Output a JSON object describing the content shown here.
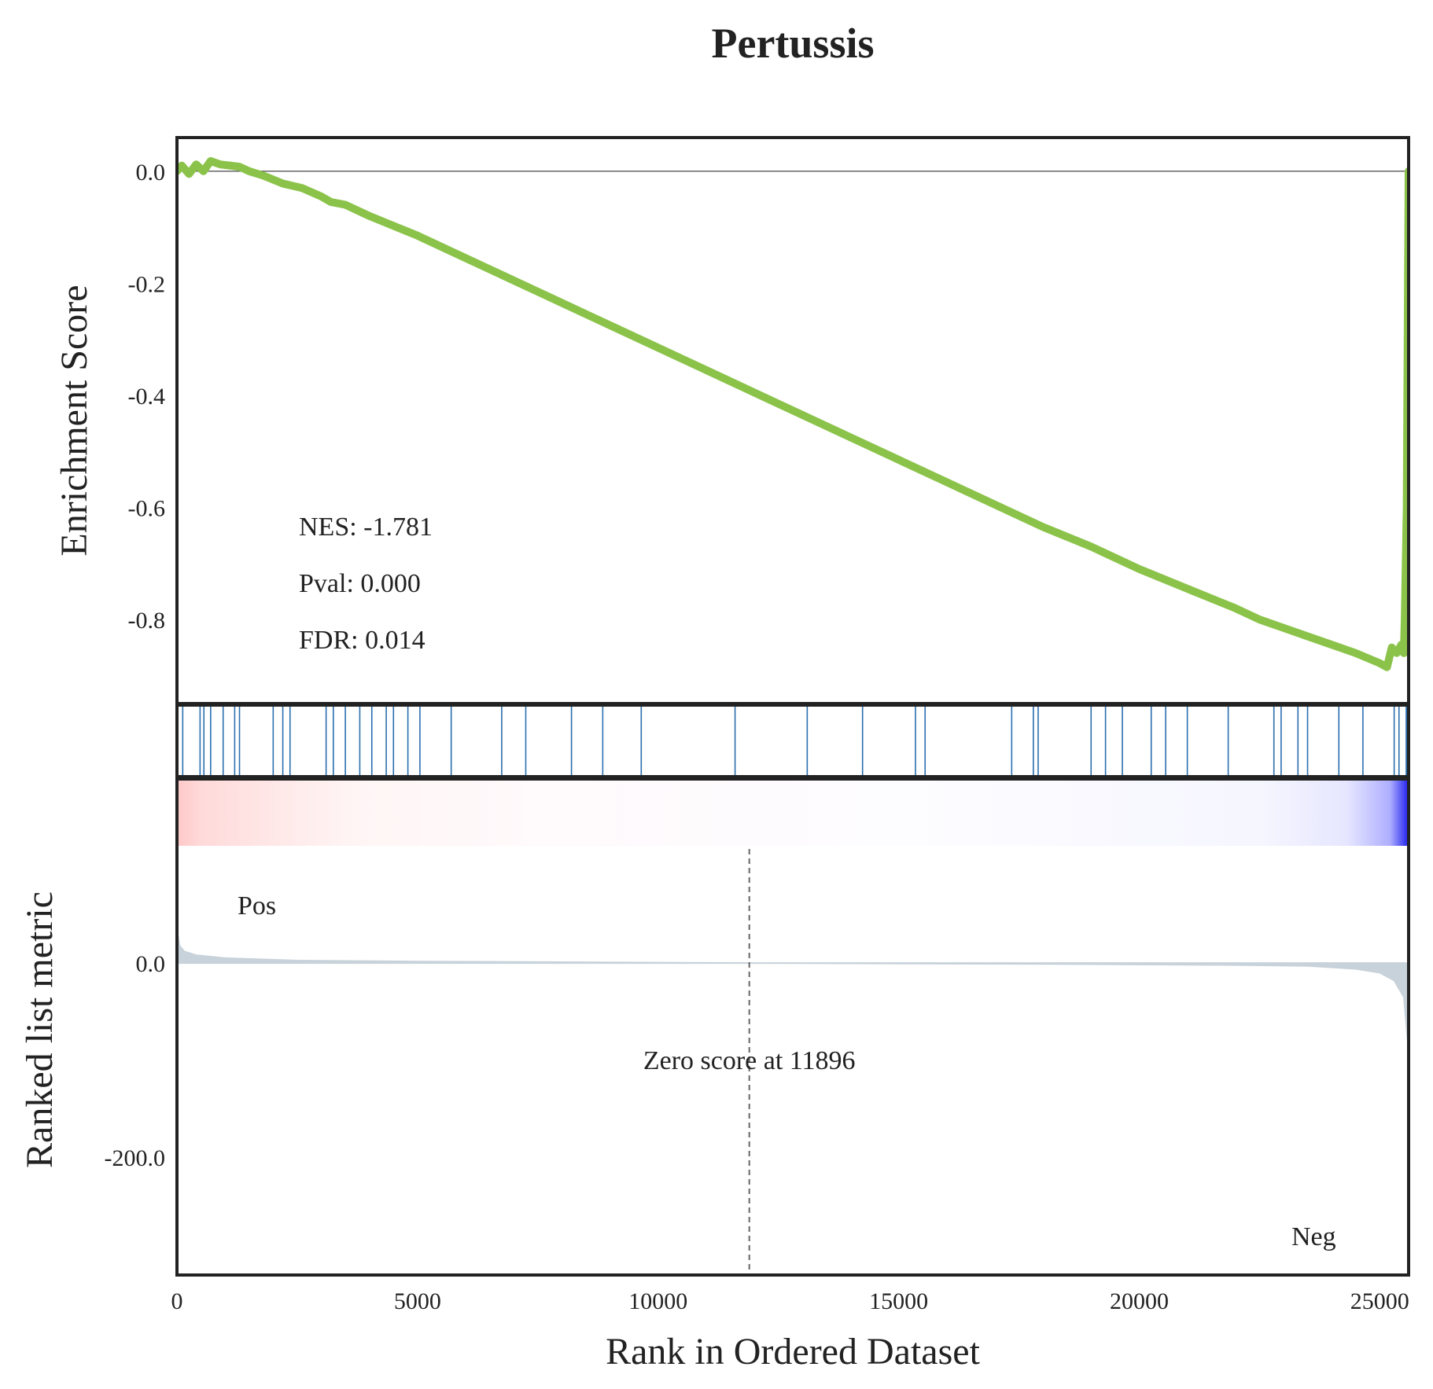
{
  "chart_data": {
    "type": "line",
    "title": "Pertussis",
    "xlabel": "Rank in Ordered Dataset",
    "xlim": [
      0,
      25600
    ],
    "x_ticks": [
      0,
      5000,
      10000,
      15000,
      20000,
      25000
    ],
    "enrichment": {
      "ylabel": "Enrichment Score",
      "ylim": [
        -0.95,
        0.06
      ],
      "y_ticks": [
        "0.0",
        "-0.2",
        "-0.4",
        "-0.6",
        "-0.8"
      ],
      "y_tick_values": [
        0.0,
        -0.2,
        -0.4,
        -0.6,
        -0.8
      ],
      "line_color": "#8bc34a",
      "points": [
        [
          0,
          0.0
        ],
        [
          100,
          0.01
        ],
        [
          250,
          -0.005
        ],
        [
          400,
          0.012
        ],
        [
          550,
          0.0
        ],
        [
          700,
          0.018
        ],
        [
          900,
          0.012
        ],
        [
          1100,
          0.01
        ],
        [
          1300,
          0.008
        ],
        [
          1500,
          0.0
        ],
        [
          1800,
          -0.008
        ],
        [
          2200,
          -0.022
        ],
        [
          2600,
          -0.03
        ],
        [
          3000,
          -0.045
        ],
        [
          3200,
          -0.055
        ],
        [
          3500,
          -0.06
        ],
        [
          4000,
          -0.08
        ],
        [
          5000,
          -0.115
        ],
        [
          6000,
          -0.155
        ],
        [
          7000,
          -0.195
        ],
        [
          8000,
          -0.235
        ],
        [
          9000,
          -0.275
        ],
        [
          10000,
          -0.315
        ],
        [
          11000,
          -0.355
        ],
        [
          12000,
          -0.395
        ],
        [
          13000,
          -0.435
        ],
        [
          14000,
          -0.475
        ],
        [
          15000,
          -0.515
        ],
        [
          16000,
          -0.555
        ],
        [
          17000,
          -0.595
        ],
        [
          18000,
          -0.635
        ],
        [
          19000,
          -0.67
        ],
        [
          20000,
          -0.71
        ],
        [
          21000,
          -0.745
        ],
        [
          22000,
          -0.78
        ],
        [
          22500,
          -0.8
        ],
        [
          23000,
          -0.815
        ],
        [
          23500,
          -0.83
        ],
        [
          24000,
          -0.845
        ],
        [
          24500,
          -0.86
        ],
        [
          25000,
          -0.878
        ],
        [
          25150,
          -0.885
        ],
        [
          25250,
          -0.85
        ],
        [
          25350,
          -0.86
        ],
        [
          25450,
          -0.845
        ],
        [
          25500,
          -0.86
        ],
        [
          25520,
          -0.8
        ],
        [
          25560,
          -0.6
        ],
        [
          25580,
          -0.3
        ],
        [
          25600,
          0.0
        ]
      ],
      "annotations": [
        {
          "label": "NES: -1.781"
        },
        {
          "label": "Pval: 0.000"
        },
        {
          "label": "FDR: 0.014"
        }
      ]
    },
    "hits": {
      "color": "#2a6fb0",
      "positions": [
        120,
        480,
        560,
        700,
        960,
        1200,
        1300,
        2000,
        2200,
        2350,
        3100,
        3250,
        3500,
        3800,
        4050,
        4350,
        4500,
        4800,
        5050,
        5700,
        6750,
        7250,
        8200,
        8850,
        9650,
        11600,
        13100,
        14250,
        15350,
        15550,
        17350,
        17800,
        17900,
        19000,
        19300,
        19650,
        20250,
        20550,
        21000,
        21850,
        22800,
        22950,
        23300,
        23500,
        24150,
        24650,
        25300,
        25400,
        25550,
        25600
      ]
    },
    "ranked_metric": {
      "ylabel": "Ranked list metric",
      "ylim": [
        -320,
        120
      ],
      "y_ticks": [
        "0.0",
        "-200.0"
      ],
      "y_tick_values": [
        0.0,
        -200.0
      ],
      "fill_color": "#c8d2da",
      "points": [
        [
          0,
          35
        ],
        [
          50,
          18
        ],
        [
          150,
          12
        ],
        [
          400,
          8
        ],
        [
          1000,
          5
        ],
        [
          2500,
          2.5
        ],
        [
          5000,
          1.5
        ],
        [
          11896,
          0
        ],
        [
          18000,
          -1
        ],
        [
          22000,
          -2
        ],
        [
          23500,
          -3
        ],
        [
          24500,
          -6
        ],
        [
          25000,
          -10
        ],
        [
          25300,
          -18
        ],
        [
          25500,
          -35
        ],
        [
          25600,
          -90
        ]
      ],
      "zero_cross_x": 11896,
      "zero_label": "Zero score at 11896",
      "pos_label": "Pos",
      "neg_label": "Neg",
      "pos_color": "#ff0000",
      "neg_color": "#0000ff"
    },
    "heat_band": {
      "stops": [
        [
          0,
          "#ffc8c8"
        ],
        [
          0.02,
          "#ffdada"
        ],
        [
          0.09,
          "#ffeaea"
        ],
        [
          0.145,
          "#fff5f5"
        ],
        [
          0.3,
          "#fffafc"
        ],
        [
          0.6,
          "#fdfcff"
        ],
        [
          0.88,
          "#f6f6ff"
        ],
        [
          0.95,
          "#e6e6ff"
        ],
        [
          0.985,
          "#aeaeff"
        ],
        [
          1.0,
          "#2020ee"
        ]
      ]
    }
  }
}
